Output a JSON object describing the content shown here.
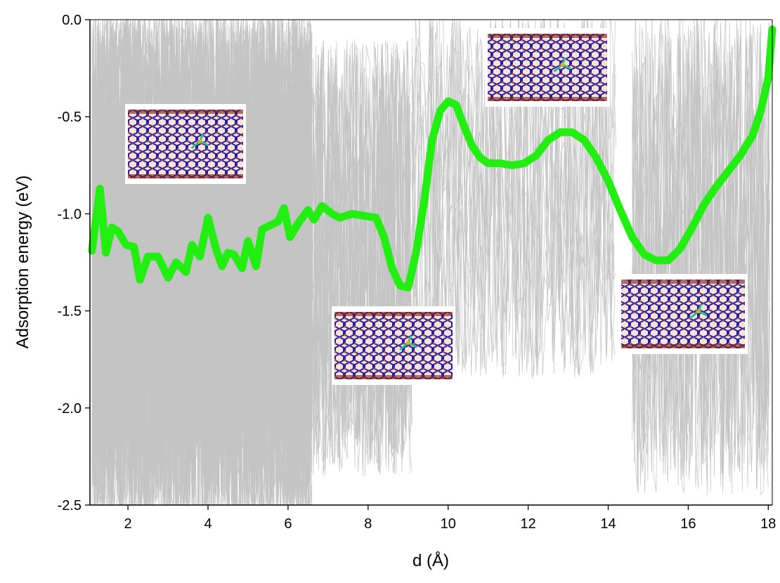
{
  "chart_data": {
    "type": "line",
    "xlabel": "d (Å)",
    "ylabel": "Adsorption energy (eV)",
    "xlim": [
      1.05,
      18.1
    ],
    "ylim": [
      -2.5,
      0.0
    ],
    "x_ticks": [
      2,
      4,
      6,
      8,
      10,
      12,
      14,
      16,
      18
    ],
    "y_ticks": [
      0.0,
      -0.5,
      -1.0,
      -1.5,
      -2.0,
      -2.5
    ],
    "x_tick_labels": [
      "2",
      "4",
      "6",
      "8",
      "10",
      "12",
      "14",
      "16",
      "18"
    ],
    "y_tick_labels": [
      "0.0",
      "-0.5",
      "-1.0",
      "-1.5",
      "-2.0",
      "-2.5"
    ],
    "grid": false,
    "legend": "none",
    "series": [
      {
        "style": "thick",
        "color": "#22ee11",
        "x": [
          1.1,
          1.3,
          1.45,
          1.6,
          1.75,
          1.95,
          2.15,
          2.3,
          2.5,
          2.75,
          3.0,
          3.2,
          3.45,
          3.6,
          3.8,
          4.0,
          4.2,
          4.35,
          4.5,
          4.65,
          4.85,
          5.0,
          5.2,
          5.35,
          5.55,
          5.75,
          5.9,
          6.05,
          6.25,
          6.5,
          6.65,
          6.85,
          7.1,
          7.3,
          7.6,
          7.9,
          8.2,
          8.4,
          8.6,
          8.8,
          9.0,
          9.2,
          9.4,
          9.6,
          9.8,
          10.0,
          10.2,
          10.4,
          10.6,
          10.8,
          11.0,
          11.3,
          11.6,
          11.9,
          12.2,
          12.5,
          12.8,
          13.1,
          13.4,
          13.7,
          14.0,
          14.3,
          14.6,
          14.9,
          15.2,
          15.5,
          15.8,
          16.1,
          16.4,
          16.7,
          17.0,
          17.3,
          17.6,
          17.8,
          18.0,
          18.1
        ],
        "y": [
          -1.19,
          -0.87,
          -1.2,
          -1.07,
          -1.09,
          -1.16,
          -1.17,
          -1.34,
          -1.22,
          -1.22,
          -1.33,
          -1.25,
          -1.3,
          -1.16,
          -1.22,
          -1.02,
          -1.18,
          -1.27,
          -1.2,
          -1.21,
          -1.28,
          -1.14,
          -1.27,
          -1.08,
          -1.06,
          -1.04,
          -0.97,
          -1.12,
          -1.05,
          -0.98,
          -1.03,
          -0.96,
          -1.0,
          -1.02,
          -1.0,
          -1.01,
          -1.02,
          -1.12,
          -1.28,
          -1.37,
          -1.38,
          -1.2,
          -0.94,
          -0.62,
          -0.47,
          -0.42,
          -0.44,
          -0.55,
          -0.65,
          -0.71,
          -0.74,
          -0.74,
          -0.75,
          -0.74,
          -0.7,
          -0.62,
          -0.58,
          -0.58,
          -0.62,
          -0.71,
          -0.83,
          -0.98,
          -1.12,
          -1.21,
          -1.24,
          -1.24,
          -1.18,
          -1.07,
          -0.95,
          -0.86,
          -0.78,
          -0.7,
          -0.6,
          -0.48,
          -0.3,
          -0.05
        ]
      }
    ]
  },
  "colors": {
    "fit_line": "#22ee11",
    "noise_lines": "#c4c4c4",
    "axes": "#000000"
  },
  "inset_images": [
    {
      "name": "nanotube-inset-1",
      "depicts": "carbon nanotube with adsorbed molecule"
    },
    {
      "name": "nanotube-inset-2",
      "depicts": "carbon nanotube with adsorbed molecule"
    },
    {
      "name": "nanotube-inset-3",
      "depicts": "carbon nanotube with adsorbed molecule"
    },
    {
      "name": "nanotube-inset-4",
      "depicts": "carbon nanotube with adsorbed molecule"
    }
  ]
}
